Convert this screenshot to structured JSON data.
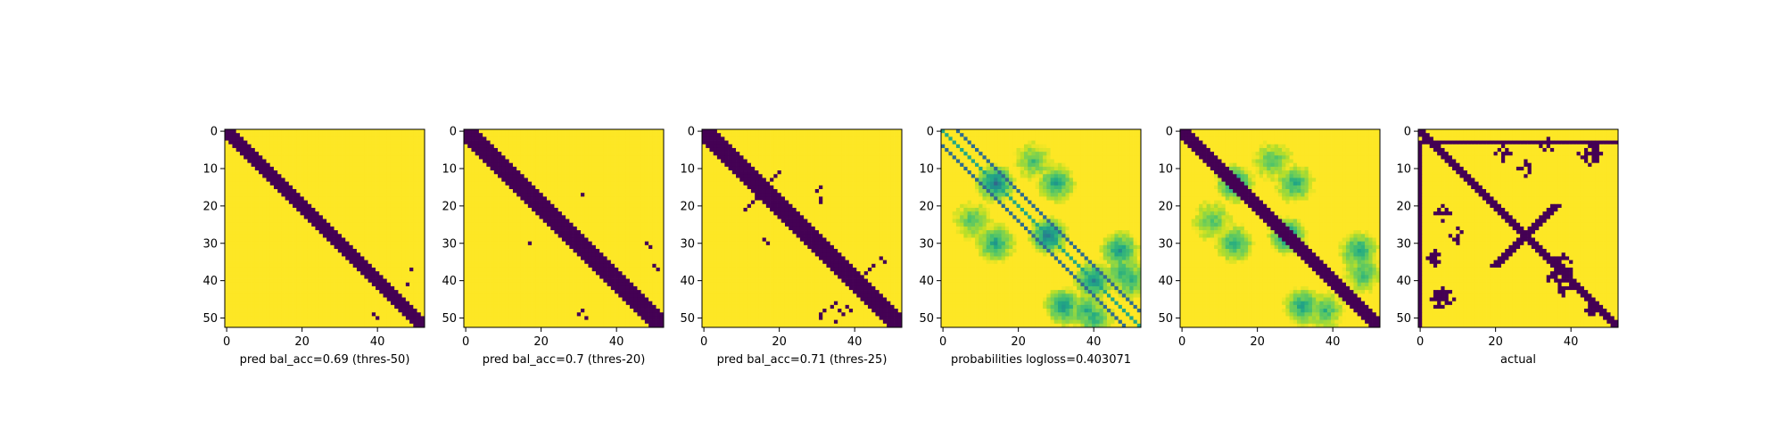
{
  "colors": {
    "viridis_low": "#440154",
    "viridis_high": "#fde725",
    "axes": "#000000",
    "background": "#ffffff"
  },
  "chart_data": [
    {
      "type": "heatmap",
      "xlabel": "pred bal_acc=0.69 (thres-50)",
      "matrix_size": 53,
      "value_kind": "binary",
      "xticks": [
        0,
        20,
        40
      ],
      "yticks": [
        0,
        10,
        20,
        30,
        40,
        50
      ],
      "xlim": [
        -0.5,
        52.5
      ],
      "ylim": [
        52.5,
        -0.5
      ],
      "colormap": "viridis",
      "pattern": {
        "band_halfwidth": 2,
        "off_band_cells": [
          [
            37,
            49
          ],
          [
            49,
            39
          ],
          [
            50,
            40
          ],
          [
            41,
            48
          ]
        ]
      }
    },
    {
      "type": "heatmap",
      "xlabel": "pred bal_acc=0.7 (thres-20)",
      "matrix_size": 53,
      "value_kind": "binary",
      "xticks": [
        0,
        20,
        40
      ],
      "yticks": [
        0,
        10,
        20,
        30,
        40,
        50
      ],
      "xlim": [
        -0.5,
        52.5
      ],
      "ylim": [
        52.5,
        -0.5
      ],
      "colormap": "viridis",
      "pattern": {
        "band_halfwidth": 3,
        "off_band_cells": [
          [
            17,
            31
          ],
          [
            30,
            17
          ],
          [
            30,
            48
          ],
          [
            31,
            49
          ],
          [
            36,
            50
          ],
          [
            37,
            51
          ],
          [
            48,
            31
          ],
          [
            49,
            30
          ],
          [
            50,
            32
          ]
        ]
      }
    },
    {
      "type": "heatmap",
      "xlabel": "pred bal_acc=0.71 (thres-25)",
      "matrix_size": 53,
      "value_kind": "binary",
      "xticks": [
        0,
        20,
        40
      ],
      "yticks": [
        0,
        10,
        20,
        30,
        40,
        50
      ],
      "xlim": [
        -0.5,
        52.5
      ],
      "ylim": [
        52.5,
        -0.5
      ],
      "colormap": "viridis",
      "pattern": {
        "band_halfwidth": 3,
        "off_band_cells": [
          [
            11,
            20
          ],
          [
            12,
            19
          ],
          [
            13,
            18
          ],
          [
            14,
            17
          ],
          [
            16,
            16
          ],
          [
            17,
            15
          ],
          [
            18,
            14
          ],
          [
            19,
            13
          ],
          [
            20,
            12
          ],
          [
            21,
            11
          ],
          [
            15,
            31
          ],
          [
            16,
            30
          ],
          [
            18,
            31
          ],
          [
            19,
            31
          ],
          [
            29,
            16
          ],
          [
            30,
            17
          ],
          [
            27,
            27
          ],
          [
            27,
            28
          ],
          [
            27,
            29
          ],
          [
            28,
            27
          ],
          [
            28,
            28
          ],
          [
            28,
            29
          ],
          [
            29,
            27
          ],
          [
            29,
            28
          ],
          [
            30,
            29
          ],
          [
            31,
            30
          ],
          [
            28,
            30
          ],
          [
            29,
            30
          ],
          [
            30,
            30
          ],
          [
            34,
            47
          ],
          [
            35,
            48
          ],
          [
            36,
            45
          ],
          [
            37,
            44
          ],
          [
            38,
            43
          ],
          [
            48,
            32
          ],
          [
            49,
            31
          ],
          [
            50,
            31
          ],
          [
            46,
            35
          ],
          [
            47,
            34
          ],
          [
            48,
            36
          ],
          [
            49,
            37
          ],
          [
            47,
            38
          ],
          [
            48,
            39
          ],
          [
            51,
            35
          ]
        ]
      }
    },
    {
      "type": "heatmap",
      "xlabel": "probabilities logloss=0.403071",
      "matrix_size": 53,
      "value_kind": "probability",
      "xticks": [
        0,
        20,
        40
      ],
      "yticks": [
        0,
        10,
        20,
        30,
        40,
        50
      ],
      "xlim": [
        -0.5,
        52.5
      ],
      "ylim": [
        52.5,
        -0.5
      ],
      "colormap": "viridis",
      "pattern": {
        "diagonal_offsets": [
          4,
          -4
        ],
        "blobs": [
          [
            14,
            14,
            0.38
          ],
          [
            28,
            28,
            0.38
          ],
          [
            30,
            14,
            0.55
          ],
          [
            14,
            30,
            0.55
          ],
          [
            24,
            8,
            0.7
          ],
          [
            8,
            24,
            0.7
          ],
          [
            40,
            40,
            0.45
          ],
          [
            47,
            32,
            0.5
          ],
          [
            32,
            47,
            0.5
          ],
          [
            48,
            38,
            0.6
          ],
          [
            38,
            48,
            0.6
          ],
          [
            40,
            50,
            0.6
          ],
          [
            50,
            40,
            0.6
          ]
        ]
      }
    },
    {
      "type": "heatmap",
      "xlabel": "",
      "matrix_size": 53,
      "value_kind": "probability",
      "xticks": [
        0,
        20,
        40
      ],
      "yticks": [
        0,
        10,
        20,
        30,
        40,
        50
      ],
      "xlim": [
        -0.5,
        52.5
      ],
      "ylim": [
        52.5,
        -0.5
      ],
      "colormap": "viridis",
      "pattern": {
        "band_halfwidth": 2,
        "blobs": [
          [
            14,
            14,
            0.45
          ],
          [
            28,
            28,
            0.45
          ],
          [
            30,
            14,
            0.6
          ],
          [
            14,
            30,
            0.6
          ],
          [
            24,
            8,
            0.7
          ],
          [
            8,
            24,
            0.7
          ],
          [
            47,
            32,
            0.55
          ],
          [
            32,
            47,
            0.55
          ],
          [
            48,
            38,
            0.65
          ],
          [
            38,
            48,
            0.65
          ]
        ]
      }
    },
    {
      "type": "heatmap",
      "xlabel": "actual",
      "matrix_size": 53,
      "value_kind": "binary",
      "xticks": [
        0,
        20,
        40
      ],
      "yticks": [
        0,
        10,
        20,
        30,
        40,
        50
      ],
      "xlim": [
        -0.5,
        52.5
      ],
      "ylim": [
        52.5,
        -0.5
      ],
      "colormap": "viridis",
      "pattern": {
        "band_halfwidth": 1,
        "lines": [
          [
            0,
            3,
            "row",
            53
          ],
          [
            3,
            0,
            "col",
            53
          ]
        ],
        "anti_band_centers": [
          [
            28,
            28,
            8
          ]
        ],
        "clusters": [
          [
            38,
            36,
            3
          ],
          [
            36,
            38,
            3
          ],
          [
            10,
            28,
            2
          ],
          [
            28,
            10,
            2
          ],
          [
            22,
            6,
            2
          ],
          [
            6,
            22,
            2
          ],
          [
            45,
            6,
            3
          ],
          [
            6,
            45,
            3
          ],
          [
            34,
            4,
            2
          ],
          [
            4,
            34,
            2
          ],
          [
            42,
            38,
            2
          ],
          [
            48,
            46,
            2
          ]
        ]
      }
    }
  ]
}
